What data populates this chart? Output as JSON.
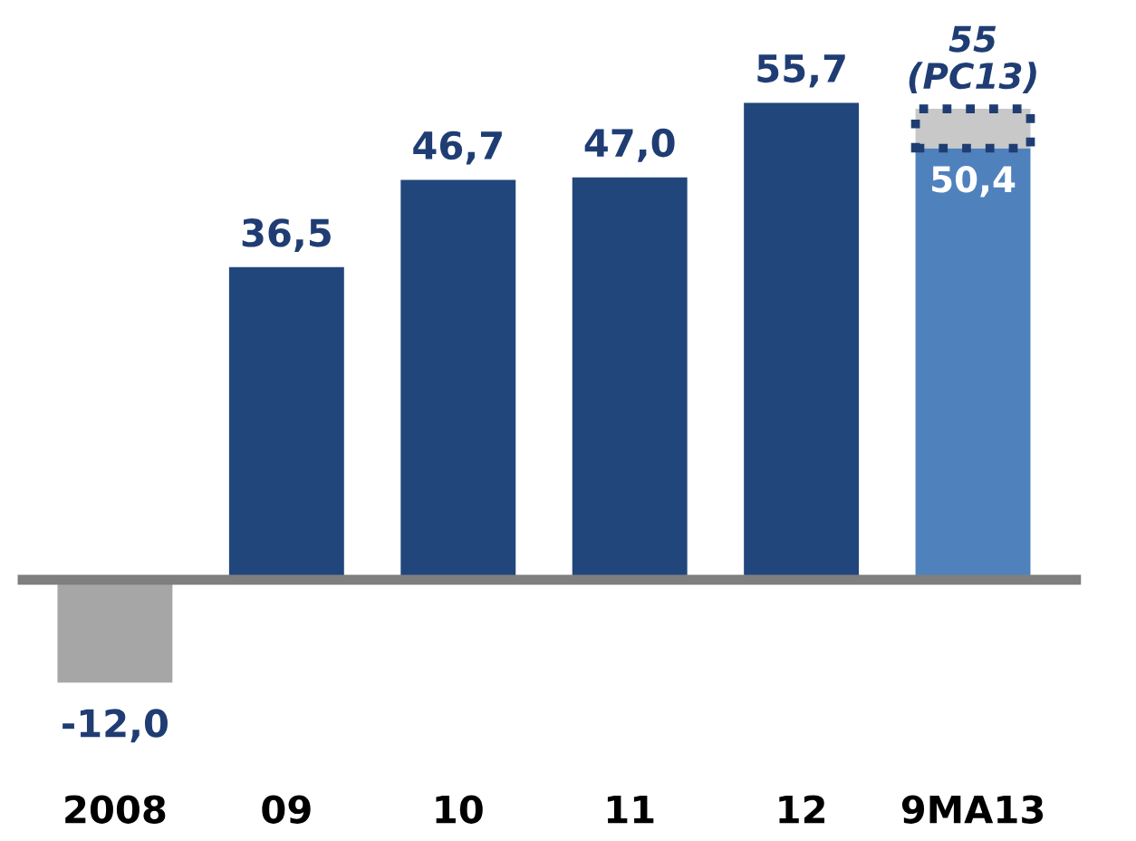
{
  "chart_data": {
    "type": "bar",
    "stacked": true,
    "data_labels": false,
    "categories": [
      "2008",
      "09",
      "10",
      "11",
      "12",
      "9MA13"
    ],
    "series": [
      {
        "colors": [
          "#a6a6a6",
          "#21467b",
          "#21467b",
          "#21467b",
          "#21467b",
          "#4f81bd"
        ],
        "values": [
          -12.0,
          36.5,
          46.7,
          47.0,
          55.7,
          50.4
        ],
        "value_labels": [
          "-12,0",
          "36,5",
          "46,7",
          "47,0",
          "55,7",
          "50,4"
        ]
      },
      {
        "color": "#c8c8c8",
        "line_style": "dotted",
        "values": [
          null,
          null,
          null,
          null,
          null,
          4.6
        ]
      }
    ],
    "totals": [
      null,
      null,
      null,
      null,
      null,
      "55\n(PC13)"
    ]
  }
}
